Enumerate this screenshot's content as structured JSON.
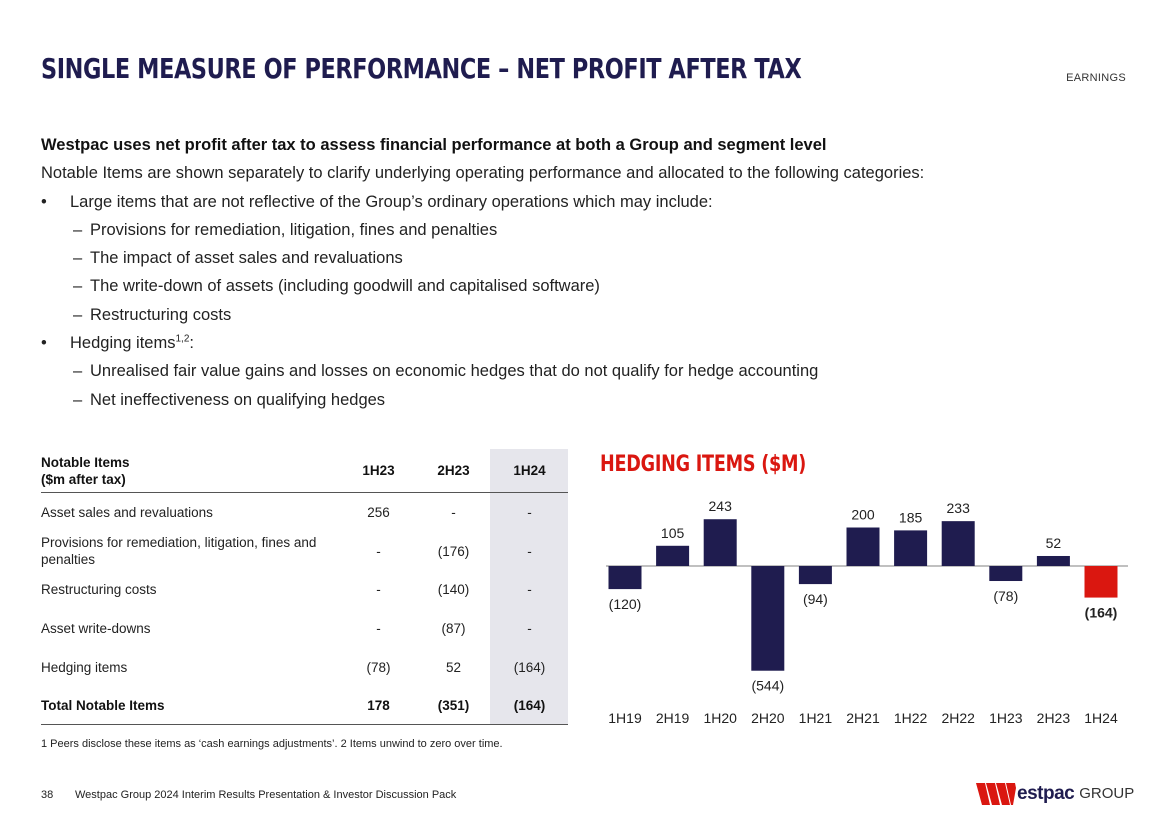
{
  "header": {
    "title": "SINGLE MEASURE OF PERFORMANCE – NET PROFIT AFTER TAX",
    "section": "EARNINGS"
  },
  "intro": {
    "lead": "Westpac uses net profit after tax to assess financial performance at both a Group and segment level",
    "line2": "Notable Items are shown separately to clarify underlying operating performance and allocated to the following categories:",
    "bullet1": "Large items that are not reflective of the Group’s ordinary operations which may include:",
    "bullet1_subs": [
      "Provisions for remediation, litigation, fines and penalties",
      "The impact of asset sales and revaluations",
      "The write-down of assets (including goodwill and capitalised software)",
      "Restructuring costs"
    ],
    "bullet2": "Hedging items",
    "bullet2_sup": "1,2",
    "bullet2_colon": ":",
    "bullet2_subs": [
      "Unrealised fair value gains and losses on economic hedges that do not qualify for hedge accounting",
      "Net ineffectiveness on qualifying hedges"
    ]
  },
  "table": {
    "header_line1": "Notable Items",
    "header_line2": "($m after tax)",
    "columns": [
      "1H23",
      "2H23",
      "1H24"
    ],
    "rows": [
      {
        "label": "Asset sales and revaluations",
        "values": [
          "256",
          "-",
          "-"
        ]
      },
      {
        "label": "Provisions for remediation, litigation, fines and penalties",
        "values": [
          "-",
          "(176)",
          "-"
        ]
      },
      {
        "label": "Restructuring costs",
        "values": [
          "-",
          "(140)",
          "-"
        ]
      },
      {
        "label": "Asset write-downs",
        "values": [
          "-",
          "(87)",
          "-"
        ]
      },
      {
        "label": "Hedging items",
        "values": [
          "(78)",
          "52",
          "(164)"
        ]
      }
    ],
    "total": {
      "label": "Total Notable Items",
      "values": [
        "178",
        "(351)",
        "(164)"
      ]
    }
  },
  "footnote": "1 Peers disclose these items as ‘cash earnings adjustments’. 2 Items unwind to zero over time.",
  "chart_data": {
    "type": "bar",
    "title": "HEDGING ITEMS ($M)",
    "categories": [
      "1H19",
      "2H19",
      "1H20",
      "2H20",
      "1H21",
      "2H21",
      "1H22",
      "2H22",
      "1H23",
      "2H23",
      "1H24"
    ],
    "values": [
      -120,
      105,
      243,
      -544,
      -94,
      200,
      185,
      233,
      -78,
      52,
      -164
    ],
    "labels": [
      "(120)",
      "105",
      "243",
      "(544)",
      "(94)",
      "200",
      "185",
      "233",
      "(78)",
      "52",
      "(164)"
    ],
    "highlight_index": 10,
    "colors": {
      "default": "#1f1c4f",
      "highlight": "#da1710",
      "axis": "#9a9a9a"
    },
    "xlabel": "",
    "ylabel": "",
    "ylim": [
      -544,
      243
    ]
  },
  "footer": {
    "page": "38",
    "text": "Westpac Group 2024 Interim Results Presentation & Investor Discussion Pack",
    "logo_word": "estpac",
    "logo_group": "GROUP"
  }
}
